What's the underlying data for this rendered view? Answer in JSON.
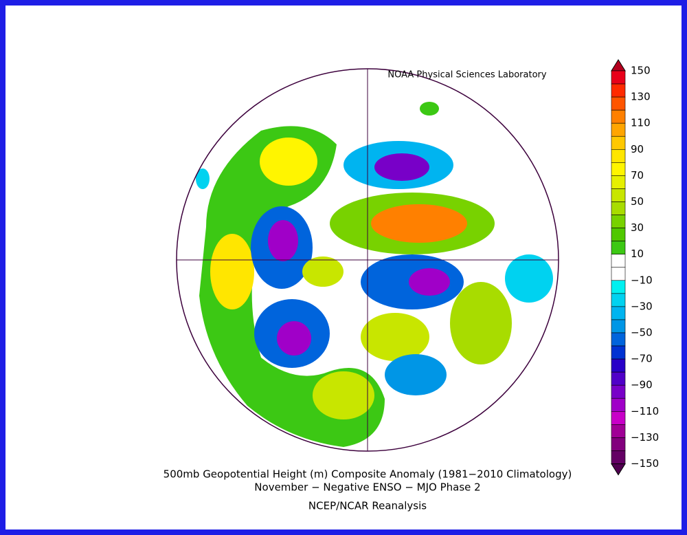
{
  "header": {
    "credit": "NOAA Physical Sciences Laboratory"
  },
  "colorbar": {
    "labels": [
      "150",
      "130",
      "110",
      "90",
      "70",
      "50",
      "30",
      "10",
      "−10",
      "−30",
      "−50",
      "−70",
      "−90",
      "−110",
      "−130",
      "−150"
    ],
    "colors": [
      "#b4001e",
      "#e8001a",
      "#ff2a00",
      "#ff5500",
      "#ff8000",
      "#ffa500",
      "#ffc800",
      "#ffe600",
      "#fff500",
      "#e6f000",
      "#c8e600",
      "#a8dc00",
      "#78d200",
      "#50c800",
      "#3cc814",
      "#ffffff",
      "#ffffff",
      "#00f0f0",
      "#00d2f0",
      "#00b4f0",
      "#0096e6",
      "#0064dc",
      "#0032d2",
      "#2800c8",
      "#5000c8",
      "#7800c8",
      "#a000c8",
      "#c800c8",
      "#a00096",
      "#82007d",
      "#640064",
      "#500050"
    ]
  },
  "caption": {
    "line1": "500mb Geopotential Height (m) Composite Anomaly (1981−2010 Climatology)",
    "line2": "November − Negative ENSO − MJO Phase 2",
    "source": "NCEP/NCAR Reanalysis"
  }
}
